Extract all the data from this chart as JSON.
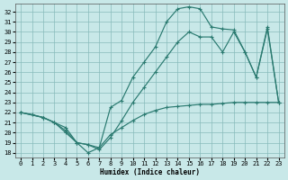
{
  "xlabel": "Humidex (Indice chaleur)",
  "xlim": [
    -0.5,
    23.5
  ],
  "ylim": [
    17.5,
    32.8
  ],
  "yticks": [
    18,
    19,
    20,
    21,
    22,
    23,
    24,
    25,
    26,
    27,
    28,
    29,
    30,
    31,
    32
  ],
  "xticks": [
    0,
    1,
    2,
    3,
    4,
    5,
    6,
    7,
    8,
    9,
    10,
    11,
    12,
    13,
    14,
    15,
    16,
    17,
    18,
    19,
    20,
    21,
    22,
    23
  ],
  "bg_color": "#c8e8e8",
  "grid_color": "#88bbbb",
  "line_color": "#2a7a70",
  "line_min_x": [
    0,
    1,
    2,
    3,
    4,
    5,
    6,
    7,
    8,
    9,
    10,
    11,
    12,
    13,
    14,
    15,
    16,
    17,
    18,
    19,
    20,
    21,
    22,
    23
  ],
  "line_min_y": [
    22.0,
    21.8,
    21.5,
    21.0,
    20.5,
    19.0,
    18.8,
    18.5,
    19.8,
    20.5,
    21.2,
    21.8,
    22.2,
    22.5,
    22.6,
    22.7,
    22.8,
    22.8,
    22.9,
    23.0,
    23.0,
    23.0,
    23.0,
    23.0
  ],
  "line_max_x": [
    0,
    2,
    3,
    4,
    5,
    6,
    7,
    8,
    9,
    10,
    11,
    12,
    13,
    14,
    15,
    16,
    17,
    18,
    19,
    20,
    21,
    22,
    23
  ],
  "line_max_y": [
    22.0,
    21.5,
    21.0,
    20.0,
    19.0,
    18.0,
    18.5,
    22.5,
    23.2,
    25.5,
    27.0,
    28.5,
    31.0,
    32.3,
    32.5,
    32.3,
    30.5,
    30.3,
    30.2,
    28.0,
    25.5,
    30.5,
    23.0
  ],
  "line_avg_x": [
    0,
    2,
    3,
    4,
    5,
    6,
    7,
    8,
    9,
    10,
    11,
    12,
    13,
    14,
    15,
    16,
    17,
    18,
    19,
    20,
    21,
    22,
    23
  ],
  "line_avg_y": [
    22.0,
    21.5,
    21.0,
    20.2,
    19.0,
    18.8,
    18.3,
    19.5,
    21.2,
    23.0,
    24.5,
    26.0,
    27.5,
    29.0,
    30.0,
    29.5,
    29.5,
    28.0,
    30.0,
    28.0,
    25.5,
    30.3,
    23.0
  ]
}
